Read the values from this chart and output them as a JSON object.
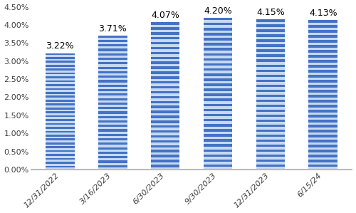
{
  "categories": [
    "12/31/2022",
    "3/16/2023",
    "6/30/2023",
    "9/30/2023",
    "12/31/2023",
    "6/15/24"
  ],
  "values": [
    0.0322,
    0.0371,
    0.0407,
    0.042,
    0.0415,
    0.0413
  ],
  "labels": [
    "3.22%",
    "3.71%",
    "4.07%",
    "4.20%",
    "4.15%",
    "4.13%"
  ],
  "bar_color_dark": "#4472C4",
  "bar_color_light": "#C5D9F1",
  "ylim": [
    0,
    0.045
  ],
  "yticks": [
    0.0,
    0.005,
    0.01,
    0.015,
    0.02,
    0.025,
    0.03,
    0.035,
    0.04,
    0.045
  ],
  "ytick_labels": [
    "0.00%",
    "0.50%",
    "1.00%",
    "1.50%",
    "2.00%",
    "2.50%",
    "3.00%",
    "3.50%",
    "4.00%",
    "4.50%"
  ],
  "background_color": "#FFFFFF",
  "label_fontsize": 9,
  "tick_fontsize": 8,
  "bar_width": 0.55,
  "n_stripes": 60
}
